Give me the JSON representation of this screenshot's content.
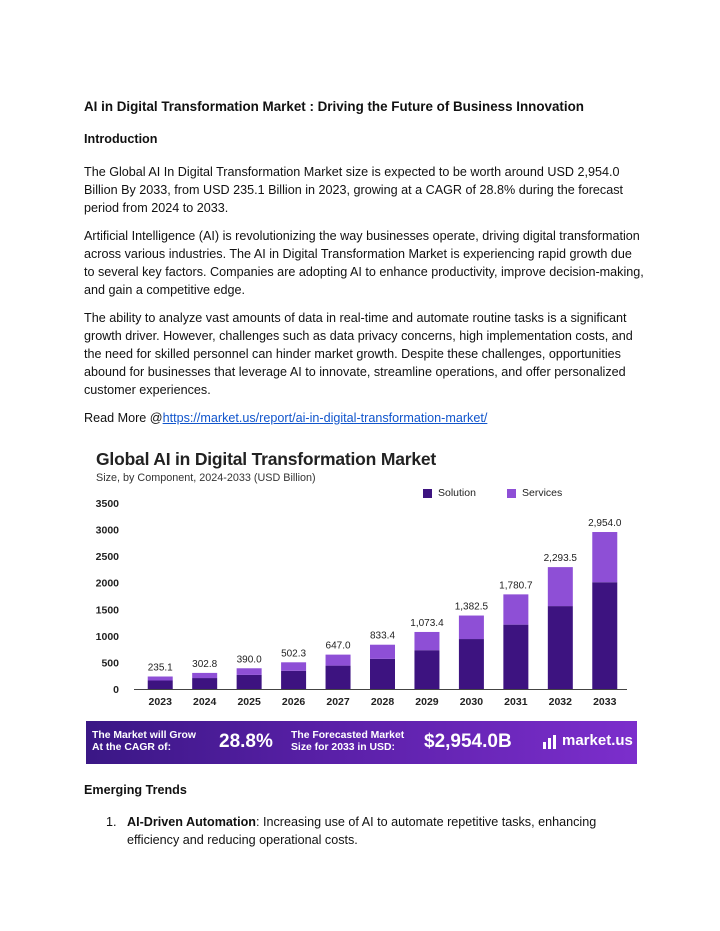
{
  "doc": {
    "title": "AI in Digital Transformation Market : Driving the Future of Business Innovation",
    "intro_heading": "Introduction",
    "p1": "The Global AI In Digital Transformation Market size is expected to be worth around USD 2,954.0 Billion By 2033, from USD 235.1 Billion in 2023, growing at a CAGR of 28.8% during the forecast period from 2024 to 2033.",
    "p2": "Artificial Intelligence (AI) is revolutionizing the way businesses operate, driving digital transformation across various industries. The AI in Digital Transformation Market is experiencing rapid growth due to several key factors. Companies are adopting AI to enhance productivity, improve decision-making, and gain a competitive edge.",
    "p3": "The ability to analyze vast amounts of data in real-time and automate routine tasks is a significant growth driver. However, challenges such as data privacy concerns, high implementation costs, and the need for skilled personnel can hinder market growth. Despite these challenges, opportunities abound for businesses that leverage AI to innovate, streamline operations, and offer personalized customer experiences.",
    "read_more_prefix": "Read More @",
    "read_more_link": "https://market.us/report/ai-in-digital-transformation-market/",
    "trends_heading": "Emerging Trends",
    "trend1_number": "1.",
    "trend1_label": "AI-Driven Automation",
    "trend1_text": ": Increasing use of AI to automate repetitive tasks, enhancing efficiency and reducing operational costs."
  },
  "banner": {
    "grow_line1": "The Market will Grow",
    "grow_line2": "At the CAGR of:",
    "cagr": "28.8%",
    "forecast_line1": "The Forecasted Market",
    "forecast_line2": "Size for 2033 in USD:",
    "forecast_value": "$2,954.0B",
    "brand": "market.us",
    "brand_icon": "market-us-logo-icon"
  },
  "colors": {
    "solution": "#3d1380",
    "services": "#8e4fd6",
    "link": "#1155cc"
  },
  "chart_data": {
    "type": "bar",
    "stacked": true,
    "title": "Global AI in Digital Transformation Market",
    "subtitle": "Size, by Component, 2024-2033 (USD Billion)",
    "categories": [
      "2023",
      "2024",
      "2025",
      "2026",
      "2027",
      "2028",
      "2029",
      "2030",
      "2031",
      "2032",
      "2033"
    ],
    "series": [
      {
        "name": "Solution",
        "values": [
          160,
          206,
          265,
          342,
          440,
          567,
          730,
          940,
          1211,
          1560,
          2009
        ]
      },
      {
        "name": "Services",
        "values": [
          75.1,
          96.8,
          125.0,
          160.3,
          207.0,
          266.4,
          343.4,
          442.5,
          569.7,
          733.5,
          945.0
        ]
      }
    ],
    "totals": [
      "235.1",
      "302.8",
      "390.0",
      "502.3",
      "647.0",
      "833.4",
      "1,073.4",
      "1,382.5",
      "1,780.7",
      "2,293.5",
      "2,954.0"
    ],
    "yticks": [
      "0",
      "500",
      "1000",
      "1500",
      "2000",
      "2500",
      "3000",
      "3500"
    ],
    "ylim": [
      0,
      3500
    ],
    "grid": false,
    "legend": "top-right"
  }
}
